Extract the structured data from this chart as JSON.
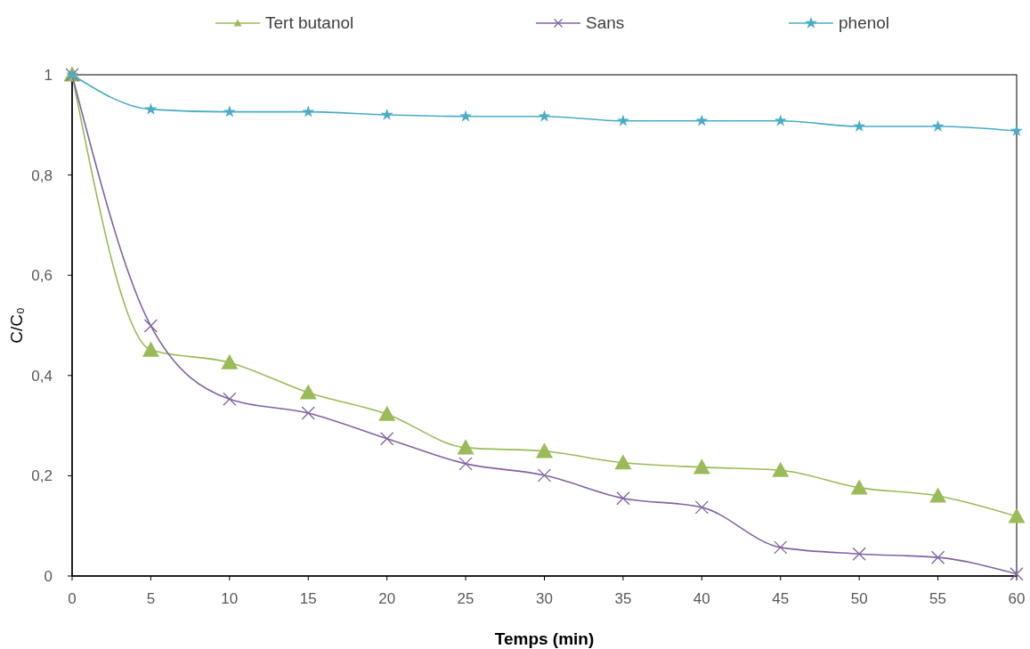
{
  "chart_data": {
    "type": "line",
    "xlabel": "Temps (min)",
    "ylabel": "C/C₀",
    "x": [
      0,
      5,
      10,
      15,
      20,
      25,
      30,
      35,
      40,
      45,
      50,
      55,
      60
    ],
    "series": [
      {
        "name": "Tert butanol",
        "color": "#9bbb59",
        "marker": "triangle",
        "values": [
          1,
          0.451,
          0.426,
          0.366,
          0.323,
          0.256,
          0.249,
          0.226,
          0.217,
          0.211,
          0.176,
          0.16,
          0.119
        ]
      },
      {
        "name": "Sans",
        "color": "#8064a2",
        "marker": "cross",
        "values": [
          1,
          0.499,
          0.353,
          0.325,
          0.274,
          0.224,
          0.201,
          0.155,
          0.137,
          0.057,
          0.044,
          0.037,
          0.004
        ]
      },
      {
        "name": "phenol",
        "color": "#4bacc6",
        "marker": "star",
        "values": [
          1,
          0.931,
          0.926,
          0.926,
          0.92,
          0.917,
          0.917,
          0.908,
          0.908,
          0.908,
          0.897,
          0.897,
          0.888
        ]
      }
    ],
    "xlim": [
      0,
      60
    ],
    "xticks": [
      0,
      5,
      10,
      15,
      20,
      25,
      30,
      35,
      40,
      45,
      50,
      55,
      60
    ],
    "ylim": [
      0,
      1
    ],
    "yticks": [
      0,
      {
        "value": 0.2,
        "label": "0,2"
      },
      {
        "value": 0.4,
        "label": "0,4"
      },
      {
        "value": 0.6,
        "label": "0,6"
      },
      {
        "value": 0.8,
        "label": "0,8"
      },
      1
    ],
    "grid": false,
    "legend": "top",
    "line_style": "solid"
  }
}
